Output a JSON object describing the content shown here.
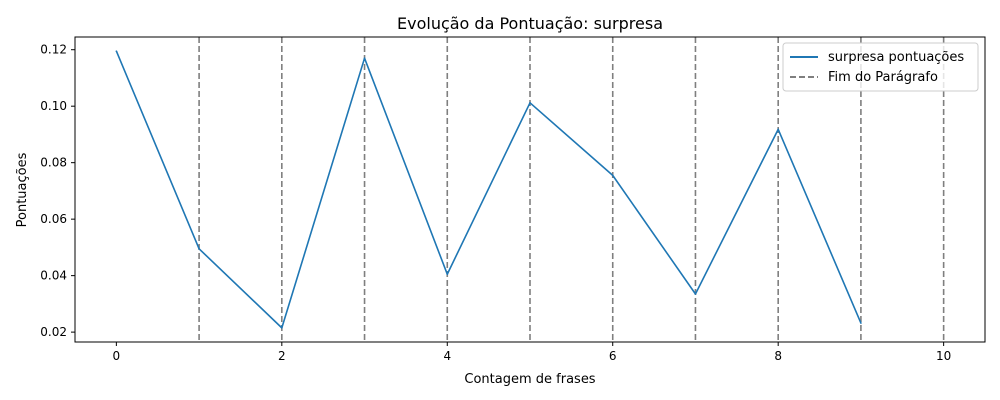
{
  "chart_data": {
    "type": "line",
    "title": "Evolução da Pontuação: surpresa",
    "xlabel": "Contagem de frases",
    "ylabel": "Pontuações",
    "xlim": [
      -0.5,
      10.5
    ],
    "ylim": [
      0.0165,
      0.1245
    ],
    "xticks": [
      0,
      2,
      4,
      6,
      8,
      10
    ],
    "yticks": [
      0.02,
      0.04,
      0.06,
      0.08,
      0.1,
      0.12
    ],
    "ytick_labels": [
      "0.02",
      "0.04",
      "0.06",
      "0.08",
      "0.10",
      "0.12"
    ],
    "grid": false,
    "legend_position": "top-right",
    "series": [
      {
        "name": "surpresa pontuações",
        "color": "#1f77b4",
        "x": [
          0,
          1,
          2,
          3,
          4,
          5,
          6,
          7,
          8,
          9
        ],
        "y": [
          0.1195,
          0.0495,
          0.0215,
          0.117,
          0.0405,
          0.1012,
          0.0755,
          0.0335,
          0.0918,
          0.0232
        ]
      }
    ],
    "vlines": {
      "name": "Fim do Parágrafo",
      "color": "#7f7f7f",
      "style": "dashed",
      "x": [
        1,
        2,
        3,
        4,
        5,
        6,
        7,
        8,
        9,
        10
      ]
    }
  }
}
